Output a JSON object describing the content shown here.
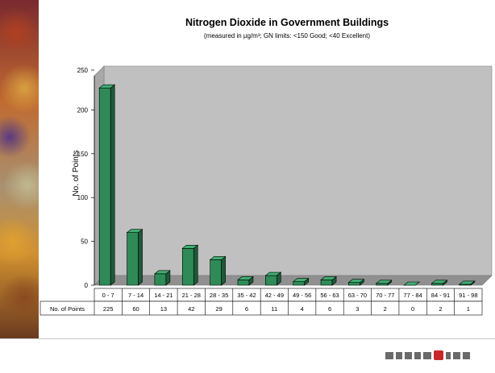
{
  "chart_data": {
    "type": "bar",
    "title": "Nitrogen Dioxide in Government Buildings",
    "subtitle": "(measured in µg/m³; GN limits: <150 Good; <40 Excellent)",
    "ylabel": "No. of Points",
    "xlabel": "",
    "ylim": [
      0,
      250
    ],
    "yticks": [
      0,
      50,
      100,
      150,
      200,
      250
    ],
    "grid": false,
    "categories": [
      "0 - 7",
      "7 - 14",
      "14 - 21",
      "21 - 28",
      "28 - 35",
      "35 - 42",
      "42 - 49",
      "49 - 56",
      "56 - 63",
      "63 - 70",
      "70 - 77",
      "77 - 84",
      "84 - 91",
      "91 - 98"
    ],
    "series": [
      {
        "name": "No. of Points",
        "values": [
          225,
          60,
          13,
          42,
          29,
          6,
          11,
          4,
          6,
          3,
          2,
          0,
          2,
          1
        ]
      }
    ],
    "bar_color": "#2e8b57",
    "plot_bg": "#c0c0c0"
  }
}
